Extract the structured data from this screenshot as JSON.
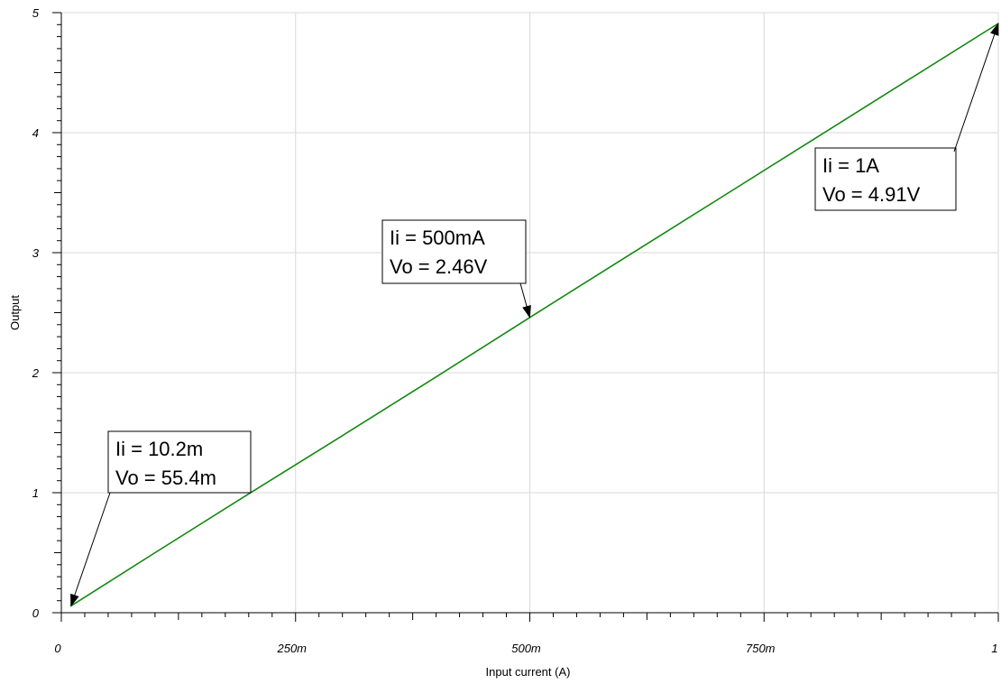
{
  "chart_data": {
    "type": "line",
    "xlabel": "Input current (A)",
    "ylabel": "Output",
    "xlim": [
      0,
      1
    ],
    "ylim": [
      0,
      5
    ],
    "grid": true,
    "x_ticks": [
      {
        "value": 0,
        "label": "0"
      },
      {
        "value": 0.25,
        "label": "250m"
      },
      {
        "value": 0.5,
        "label": "500m"
      },
      {
        "value": 0.75,
        "label": "750m"
      },
      {
        "value": 1,
        "label": "1"
      }
    ],
    "y_ticks": [
      {
        "value": 0,
        "label": "0"
      },
      {
        "value": 1,
        "label": "1"
      },
      {
        "value": 2,
        "label": "2"
      },
      {
        "value": 3,
        "label": "3"
      },
      {
        "value": 4,
        "label": "4"
      },
      {
        "value": 5,
        "label": "5"
      }
    ],
    "series": [
      {
        "color": "#118811",
        "x": [
          0.0102,
          0.1,
          0.2,
          0.3,
          0.4,
          0.5,
          0.6,
          0.7,
          0.8,
          0.9,
          1.0
        ],
        "y": [
          0.0554,
          0.5,
          0.99,
          1.475,
          1.965,
          2.46,
          2.95,
          3.44,
          3.93,
          4.42,
          4.91
        ]
      }
    ],
    "annotations": [
      {
        "x": 0.0102,
        "y": 0.0554,
        "line1": "Ii = 10.2m",
        "line2": "Vo = 55.4m"
      },
      {
        "x": 0.5,
        "y": 2.46,
        "line1": "Ii = 500mA",
        "line2": "Vo = 2.46V"
      },
      {
        "x": 1.0,
        "y": 4.91,
        "line1": "Ii = 1A",
        "line2": "Vo = 4.91V"
      }
    ]
  }
}
